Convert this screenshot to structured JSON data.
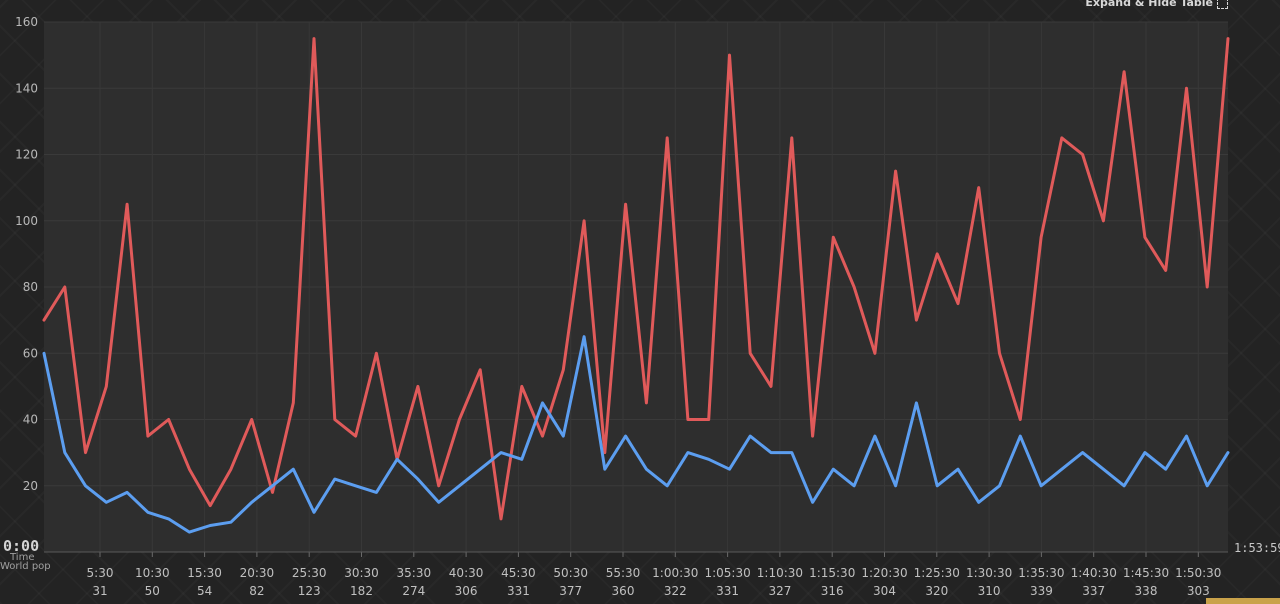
{
  "toolbar": {
    "expand_label": "Expand & Hide Table"
  },
  "chart_data": {
    "type": "line",
    "x_axis_name": "Time",
    "x_sub_axis_name": "World pop",
    "start_label": "0:00",
    "end_label": "1:53:59",
    "ylim": [
      0,
      160
    ],
    "yticks": [
      "20",
      "40",
      "60",
      "80",
      "100",
      "120",
      "140",
      "160"
    ],
    "xticks": [
      "5:30",
      "10:30",
      "15:30",
      "20:30",
      "25:30",
      "30:30",
      "35:30",
      "40:30",
      "45:30",
      "50:30",
      "55:30",
      "1:00:30",
      "1:05:30",
      "1:10:30",
      "1:15:30",
      "1:20:30",
      "1:25:30",
      "1:30:30",
      "1:35:30",
      "1:40:30",
      "1:45:30",
      "1:50:30"
    ],
    "xtick_pop": [
      "31",
      "50",
      "54",
      "82",
      "123",
      "182",
      "274",
      "306",
      "331",
      "377",
      "360",
      "322",
      "331",
      "327",
      "316",
      "304",
      "320",
      "310",
      "339",
      "337",
      "338",
      "303"
    ],
    "grid": true,
    "colors": {
      "red_series": "#e05a5a",
      "blue_series": "#5c9ef0",
      "plot_bg": "#2e2e2e"
    },
    "series": [
      {
        "color": "#e05a5a",
        "x": [
          0,
          2,
          4,
          6,
          8,
          10,
          12,
          14,
          16,
          18,
          20,
          22,
          24,
          26,
          28,
          30,
          32,
          34,
          36,
          38,
          40,
          42,
          44,
          46,
          48,
          50,
          52,
          54,
          56,
          58,
          60,
          62,
          64,
          66,
          68,
          70,
          72,
          74,
          76,
          78,
          80,
          82,
          84,
          86,
          88,
          90,
          92,
          94,
          96,
          98,
          100,
          102,
          104,
          106,
          108,
          110,
          112,
          114
        ],
        "values": [
          70,
          80,
          30,
          50,
          105,
          35,
          40,
          25,
          14,
          25,
          40,
          18,
          45,
          155,
          40,
          35,
          60,
          28,
          50,
          20,
          40,
          55,
          10,
          50,
          35,
          55,
          100,
          30,
          105,
          45,
          125,
          40,
          40,
          150,
          60,
          50,
          125,
          35,
          95,
          80,
          60,
          115,
          70,
          90,
          75,
          110,
          60,
          40,
          95,
          125,
          120,
          100,
          145,
          95,
          85,
          140,
          80,
          155
        ]
      },
      {
        "color": "#5c9ef0",
        "x": [
          0,
          2,
          4,
          6,
          8,
          10,
          12,
          14,
          16,
          18,
          20,
          22,
          24,
          26,
          28,
          30,
          32,
          34,
          36,
          38,
          40,
          42,
          44,
          46,
          48,
          50,
          52,
          54,
          56,
          58,
          60,
          62,
          64,
          66,
          68,
          70,
          72,
          74,
          76,
          78,
          80,
          82,
          84,
          86,
          88,
          90,
          92,
          94,
          96,
          98,
          100,
          102,
          104,
          106,
          108,
          110,
          112,
          114
        ],
        "values": [
          60,
          30,
          20,
          15,
          18,
          12,
          10,
          6,
          8,
          9,
          15,
          20,
          25,
          12,
          22,
          20,
          18,
          28,
          22,
          15,
          20,
          25,
          30,
          28,
          45,
          35,
          65,
          25,
          35,
          25,
          20,
          30,
          28,
          25,
          35,
          30,
          30,
          15,
          25,
          20,
          35,
          20,
          45,
          20,
          25,
          15,
          20,
          35,
          20,
          25,
          30,
          25,
          20,
          30,
          25,
          35,
          20,
          30
        ]
      }
    ]
  }
}
